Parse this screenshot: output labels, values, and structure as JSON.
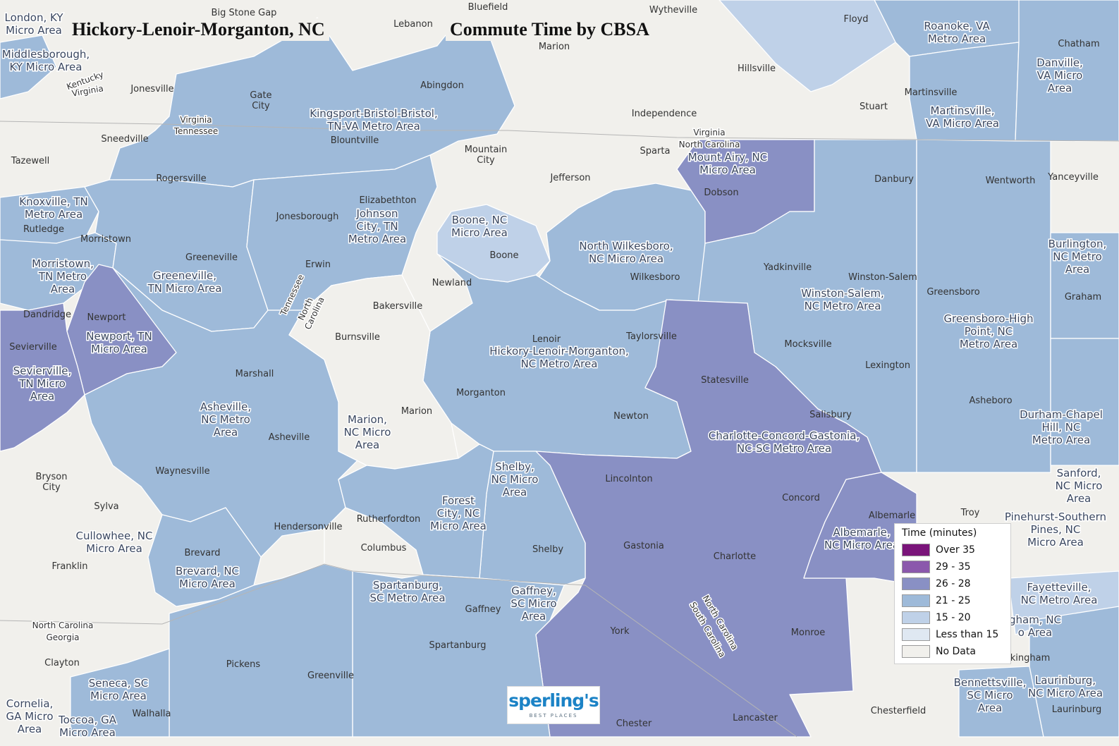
{
  "map_title": "Hickory-Lenoir-Morganton, NC",
  "map_subtitle": "Commute Time by CBSA",
  "legend": {
    "title": "Time (minutes)",
    "items": [
      {
        "label": "Over 35",
        "color": "#7a147a"
      },
      {
        "label": "29 - 35",
        "color": "#8b58ac"
      },
      {
        "label": "26 - 28",
        "color": "#8990c4"
      },
      {
        "label": "21 - 25",
        "color": "#9ebad9"
      },
      {
        "label": "15 - 20",
        "color": "#bfd1e8"
      },
      {
        "label": "Less than 15",
        "color": "#dfe8f2"
      },
      {
        "label": "No Data",
        "color": "#f1f0ec"
      }
    ]
  },
  "logo": {
    "name": "sperling's",
    "tagline": "BEST PLACES"
  },
  "areas": [
    "Kingsport-Bristol-Bristol, TN-VA Metro Area",
    "Johnson City, TN Metro Area",
    "Boone, NC Micro Area",
    "North Wilkesboro, NC Micro Area",
    "Mount Airy, NC Micro Area",
    "Winston-Salem, NC Metro Area",
    "Greensboro-High Point, NC Metro Area",
    "Hickory-Lenoir-Morganton, NC Metro Area",
    "Charlotte-Concord-Gastonia, NC-SC Metro Area",
    "Asheville, NC Metro Area",
    "Marion, NC Micro Area",
    "Newport, TN Micro Area",
    "Sevierville, TN Micro Area",
    "Greeneville, TN Micro Area",
    "Knoxville, TN Metro Area",
    "Morristown, TN Metro Area",
    "Shelby, NC Micro Area",
    "Forest City, NC Micro Area",
    "Spartanburg, SC Metro Area",
    "Gaffney, SC Micro Area",
    "Albemarle, NC Micro Area",
    "Martinsville, VA Micro Area",
    "Danville, VA Micro Area",
    "Roanoke, VA Metro Area",
    "Burlington, NC Metro Area",
    "Durham-Chapel Hill, NC Metro Area",
    "Sanford, NC Micro Area",
    "Pinehurst-Southern Pines, NC Micro Area",
    "Fayetteville, NC Metro Area",
    "Bennettsville, SC Micro Area",
    "Laurinburg, NC Micro Area",
    "Brevard, NC Micro Area",
    "Cullowhee, NC Micro Area",
    "Seneca, SC Micro Area",
    "Toccoa, GA Micro Area",
    "Cornelia, GA Micro Area",
    "Middlesborough, KY Micro Area",
    "London, KY Micro Area"
  ],
  "area_labels": [
    "London, KY\nMicro Area",
    "Middlesborough,\nKY Micro Area",
    "Kingsport-Bristol-Bristol,\nTN-VA Metro Area",
    "Roanoke, VA\nMetro Area",
    "Danville,\nVA Micro\nArea",
    "Martinsville,\nVA Micro Area",
    "Mount Airy, NC\nMicro Area",
    "Knoxville, TN\nMetro Area",
    "Johnson\nCity, TN\nMetro Area",
    "Boone, NC\nMicro Area",
    "North Wilkesboro,\nNC Micro Area",
    "Morristown,\nTN Metro\nArea",
    "Greeneville,\nTN Micro Area",
    "Winston-Salem,\nNC Metro Area",
    "Burlington,\nNC Metro\nArea",
    "Greensboro-High\nPoint, NC\nMetro Area",
    "Newport, TN\nMicro Area",
    "Sevierville,\nTN Micro\nArea",
    "Hickory-Lenoir-Morganton,\nNC Metro Area",
    "Asheville,\nNC Metro\nArea",
    "Marion,\nNC Micro\nArea",
    "Charlotte-Concord-Gastonia,\nNC-SC Metro Area",
    "Durham-Chapel\nHill, NC\nMetro Area",
    "Shelby,\nNC Micro\nArea",
    "Forest\nCity, NC\nMicro Area",
    "Sanford,\nNC Micro\nArea",
    "Pinehurst-Southern\nPines, NC\nMicro Area",
    "Albemarle,\nNC Micro Area",
    "Cullowhee, NC\nMicro Area",
    "Brevard, NC\nMicro Area",
    "Spartanburg,\nSC Metro Area",
    "Gaffney,\nSC Micro\nArea",
    "Fayetteville,\nNC Metro Area",
    "gham, NC\no Area",
    "Seneca, SC\nMicro Area",
    "Bennettsville,\nSC Micro\nArea",
    "Laurinburg,\nNC Micro Area",
    "Cornelia,\nGA Micro\nArea",
    "Toccoa, GA\nMicro Area"
  ],
  "cities": [
    "Big Stone Gap",
    "Bluefield",
    "Wytheville",
    "Lebanon",
    "Marion",
    "Floyd",
    "Chatham",
    "Jonesville",
    "Abingdon",
    "Hillsville",
    "Gate\nCity",
    "Martinsville",
    "Stuart",
    "Independence",
    "Sneedville",
    "Blountville",
    "Mountain\nCity",
    "Sparta",
    "Tazewell",
    "Jefferson",
    "Dobson",
    "Danbury",
    "Wentworth",
    "Yanceyville",
    "Rogersville",
    "Elizabethton",
    "Rutledge",
    "Jonesborough",
    "Morristown",
    "Greeneville",
    "Boone",
    "Yadkinville",
    "Winston-Salem",
    "Erwin",
    "Wilkesboro",
    "Greensboro",
    "Graham",
    "Newland",
    "Bakersville",
    "Dandridge",
    "Newport",
    "Lenoir",
    "Taylorsville",
    "Sevierville",
    "Burnsville",
    "Mocksville",
    "Lexington",
    "Marshall",
    "Statesville",
    "Morganton",
    "Marion",
    "Asheboro",
    "Salisbury",
    "Newton",
    "Asheville",
    "Bryson\nCity",
    "Waynesville",
    "Lincolnton",
    "Concord",
    "Sylva",
    "Albemarle",
    "Troy",
    "Hendersonville",
    "Rutherfordton",
    "Gastonia",
    "Shelby",
    "Columbus",
    "Brevard",
    "Charlotte",
    "Franklin",
    "Gaffney",
    "Monroe",
    "York",
    "Spartanburg",
    "Clayton",
    "Pickens",
    "Greenville",
    "Walhalla",
    "Chesterfield",
    "Lancaster",
    "Chester",
    "Laurinburg",
    "kingham"
  ],
  "state_labels": [
    "Kentucky",
    "Virginia",
    "Virginia",
    "Tennessee",
    "Virginia",
    "North Carolina",
    "Tennessee",
    "North\nCarolina",
    "North Carolina",
    "Georgia",
    "North Carolina",
    "South Carolina"
  ]
}
